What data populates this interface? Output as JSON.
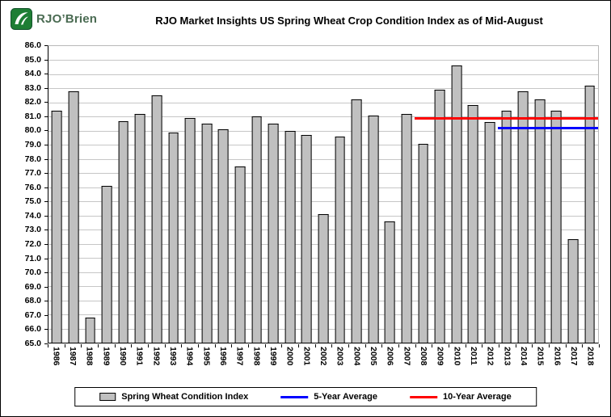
{
  "header": {
    "logo_text": "RJO’Brien",
    "title": "RJO Market Insights US Spring Wheat Crop Condition Index as of Mid-August"
  },
  "chart_data": {
    "type": "bar",
    "title": "RJO Market Insights US Spring Wheat Crop Condition Index as of Mid-August",
    "categories": [
      1986,
      1987,
      1988,
      1989,
      1990,
      1991,
      1992,
      1993,
      1994,
      1995,
      1996,
      1997,
      1998,
      1999,
      2000,
      2001,
      2002,
      2003,
      2004,
      2005,
      2006,
      2007,
      2008,
      2009,
      2010,
      2011,
      2012,
      2013,
      2014,
      2015,
      2016,
      2017,
      2018
    ],
    "values": [
      81.4,
      82.8,
      66.8,
      76.1,
      80.7,
      81.2,
      82.5,
      79.9,
      80.9,
      80.5,
      80.1,
      77.5,
      81.0,
      80.5,
      80.0,
      79.7,
      74.1,
      79.6,
      82.2,
      81.1,
      73.6,
      81.2,
      79.1,
      82.9,
      84.6,
      81.8,
      80.6,
      81.4,
      82.8,
      82.2,
      81.4,
      72.3,
      83.2
    ],
    "xlabel": "",
    "ylabel": "",
    "ylim": [
      65.0,
      86.0
    ],
    "ytick_step": 1.0,
    "ytick_format": "0.0",
    "grid": true,
    "bar_color": "#c0c0c0",
    "bar_border_color": "#000000",
    "avg_lines": [
      {
        "name": "5-Year Average",
        "value": 80.2,
        "start_year": 2013,
        "end_year": 2018,
        "color": "#0000ff"
      },
      {
        "name": "10-Year Average",
        "value": 80.9,
        "start_year": 2008,
        "end_year": 2018,
        "color": "#ff0000"
      }
    ],
    "legend": {
      "position": "bottom",
      "items": [
        {
          "label": "Spring Wheat Condition Index",
          "swatch": "bar",
          "color": "#c0c0c0"
        },
        {
          "label": "5-Year Average",
          "swatch": "line",
          "color": "#0000ff"
        },
        {
          "label": "10-Year Average",
          "swatch": "line",
          "color": "#ff0000"
        }
      ]
    }
  }
}
